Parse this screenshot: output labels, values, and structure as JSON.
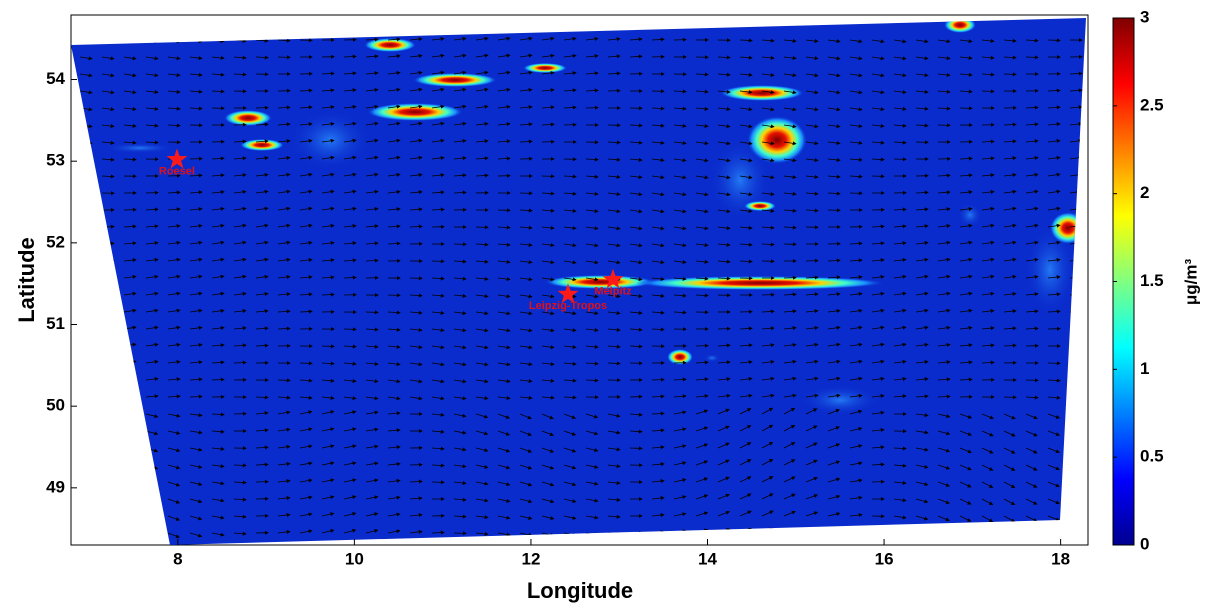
{
  "chart_data": {
    "type": "heatmap",
    "xlabel": "Longitude",
    "ylabel": "Latitude",
    "xlim": [
      6.79,
      18.31
    ],
    "xticks": [
      8,
      10,
      12,
      14,
      16,
      18
    ],
    "ylim": [
      48.3,
      54.79
    ],
    "yticks": [
      49,
      50,
      51,
      52,
      53,
      54
    ],
    "colormap": "jet",
    "colorbar": {
      "label": "μg/m³",
      "lim": [
        0,
        3
      ],
      "ticks": [
        0,
        0.5,
        1,
        1.5,
        2,
        2.5,
        3
      ]
    },
    "points": [
      {
        "name": "Roesel",
        "x": 7.99,
        "y": 53.02
      },
      {
        "name": "Leipzig-Tropos",
        "x": 12.42,
        "y": 51.37
      },
      {
        "name": "Melpitz",
        "x": 12.93,
        "y": 51.55
      }
    ],
    "point_color": "#ff1a1a"
  }
}
